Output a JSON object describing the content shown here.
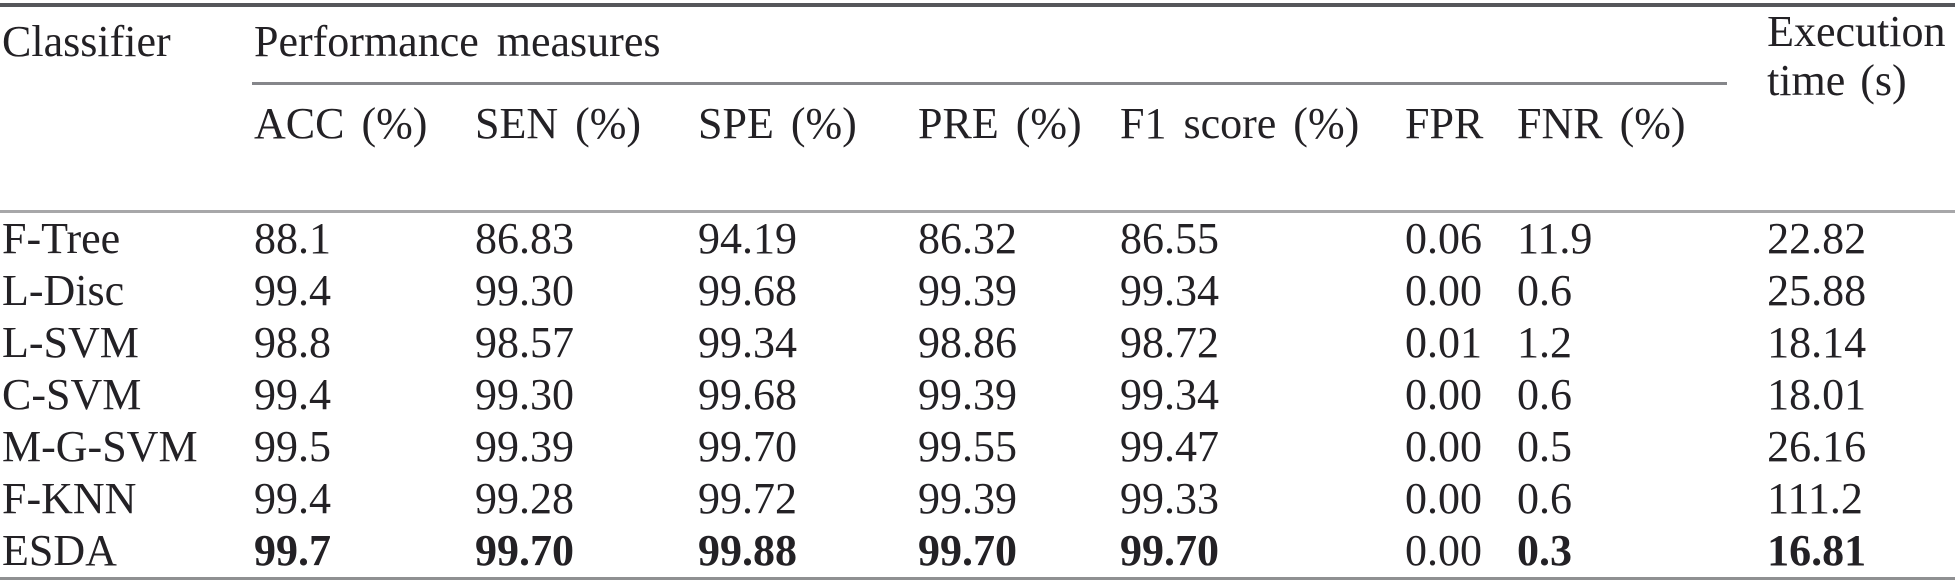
{
  "page": {
    "background": "#ffffff",
    "text_color": "#232125",
    "rule_colors": {
      "top_rule": "#55565a",
      "spanner_rule": "#85868a",
      "header_body_rule": "#a7a7a9",
      "bottom_rule": "#8f9092"
    }
  },
  "table": {
    "corner_header": "Classifier",
    "group_header": "Performance measures",
    "execution_header": {
      "line1": "Execution",
      "line2": "time (s)"
    },
    "measure_headers": [
      "ACC (%)",
      "SEN (%)",
      "SPE (%)",
      "PRE (%)",
      "F1 score (%)",
      "FPR",
      "FNR (%)"
    ],
    "rows": [
      [
        "F-Tree",
        "88.1",
        "86.83",
        "94.19",
        "86.32",
        "86.55",
        "0.06",
        "11.9",
        "22.82"
      ],
      [
        "L-Disc",
        "99.4",
        "99.30",
        "99.68",
        "99.39",
        "99.34",
        "0.00",
        "0.6",
        "25.88"
      ],
      [
        "L-SVM",
        "98.8",
        "98.57",
        "99.34",
        "98.86",
        "98.72",
        "0.01",
        "1.2",
        "18.14"
      ],
      [
        "C-SVM",
        "99.4",
        "99.30",
        "99.68",
        "99.39",
        "99.34",
        "0.00",
        "0.6",
        "18.01"
      ],
      [
        "M-G-SVM",
        "99.5",
        "99.39",
        "99.70",
        "99.55",
        "99.47",
        "0.00",
        "0.5",
        "26.16"
      ],
      [
        "F-KNN",
        "99.4",
        "99.28",
        "99.72",
        "99.39",
        "99.33",
        "0.00",
        "0.6",
        "111.2"
      ],
      [
        "ESDA",
        "99.7",
        "99.70",
        "99.88",
        "99.70",
        "99.70",
        "0.00",
        "0.3",
        "16.81"
      ]
    ],
    "emphasis": {
      "bold_row_label": "ESDA",
      "bold_values": [
        "99.7",
        "99.70",
        "99.88",
        "99.70",
        "99.70",
        "0.3",
        "16.81"
      ]
    }
  }
}
